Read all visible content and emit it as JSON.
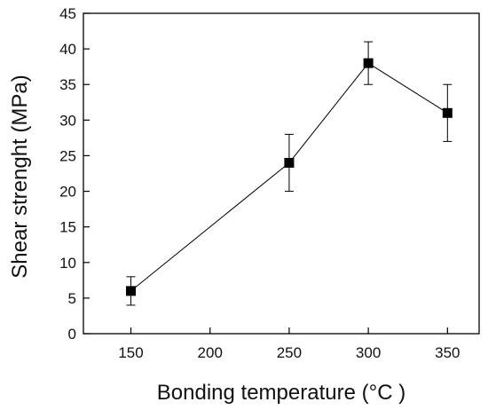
{
  "chart_data": {
    "type": "line",
    "title": "",
    "xlabel": "Bonding temperature (°C )",
    "ylabel": "Shear strenght (MPa)",
    "xlim": [
      120,
      370
    ],
    "ylim": [
      0,
      45
    ],
    "xticks": [
      150,
      200,
      250,
      300,
      350
    ],
    "yticks": [
      0,
      5,
      10,
      15,
      20,
      25,
      30,
      35,
      40,
      45
    ],
    "grid": false,
    "marker": "square",
    "colors": {
      "line": "#000000",
      "marker": "#000000",
      "axis": "#000000"
    },
    "series": [
      {
        "x": [
          150,
          250,
          300,
          350
        ],
        "y": [
          6,
          24,
          38,
          31
        ],
        "err_low": [
          4,
          20,
          35,
          27
        ],
        "err_high": [
          8,
          28,
          41,
          35
        ]
      }
    ]
  }
}
